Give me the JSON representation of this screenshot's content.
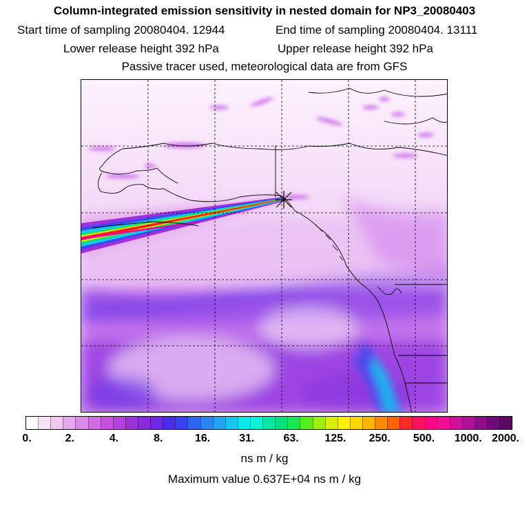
{
  "header": {
    "title": "Column-integrated emission sensitivity in nested domain for NP3_20080403",
    "start_label": "Start time of sampling 20080404. 12944",
    "end_label": "End time of sampling 20080404. 13111",
    "lower_label": "Lower release height  392 hPa",
    "upper_label": "Upper release height  392 hPa",
    "note": "Passive tracer used, meteorological data are from GFS"
  },
  "colorbar": {
    "tick_labels": [
      "0.",
      "2.",
      "4.",
      "8.",
      "16.",
      "31.",
      "63.",
      "125.",
      "250.",
      "500.",
      "1000.",
      "2000."
    ],
    "colors": [
      "#ffffff",
      "#f7e1f7",
      "#f0c8f0",
      "#e6a8ee",
      "#de88ea",
      "#d46ae6",
      "#c94fe0",
      "#b63fe0",
      "#9f30dd",
      "#8a28e0",
      "#6f26e6",
      "#4a2cec",
      "#3a3ff2",
      "#2f63f2",
      "#2a86f2",
      "#22a4f2",
      "#1ac4f0",
      "#0ee6ee",
      "#0cf2d4",
      "#0ae6a8",
      "#06e07c",
      "#1ae656",
      "#52ee20",
      "#9cf010",
      "#d8ee06",
      "#fff000",
      "#ffd800",
      "#ffb400",
      "#ff8c00",
      "#ff6400",
      "#ff2a2a",
      "#ff1060",
      "#ff0888",
      "#f01098",
      "#d010a0",
      "#b0109a",
      "#900a8c",
      "#700a78",
      "#5a0a62"
    ],
    "units": "ns m / kg",
    "max_value_text": "Maximum value  0.637E+04 ns m / kg"
  },
  "map": {
    "receptor_marker": "star-marker",
    "colors": {
      "background": "#fbe8fb",
      "low_violet": "#c24ee6",
      "mid_purple": "#9a3ce0",
      "blue": "#3b4af0",
      "cyan": "#14c8f0",
      "plume_core_red": "#ff1a1a",
      "plume_yellow": "#f0f000",
      "plume_green": "#22e060",
      "plume_magenta": "#f000a0",
      "coastline": "#000000",
      "gridline": "#000000"
    }
  }
}
